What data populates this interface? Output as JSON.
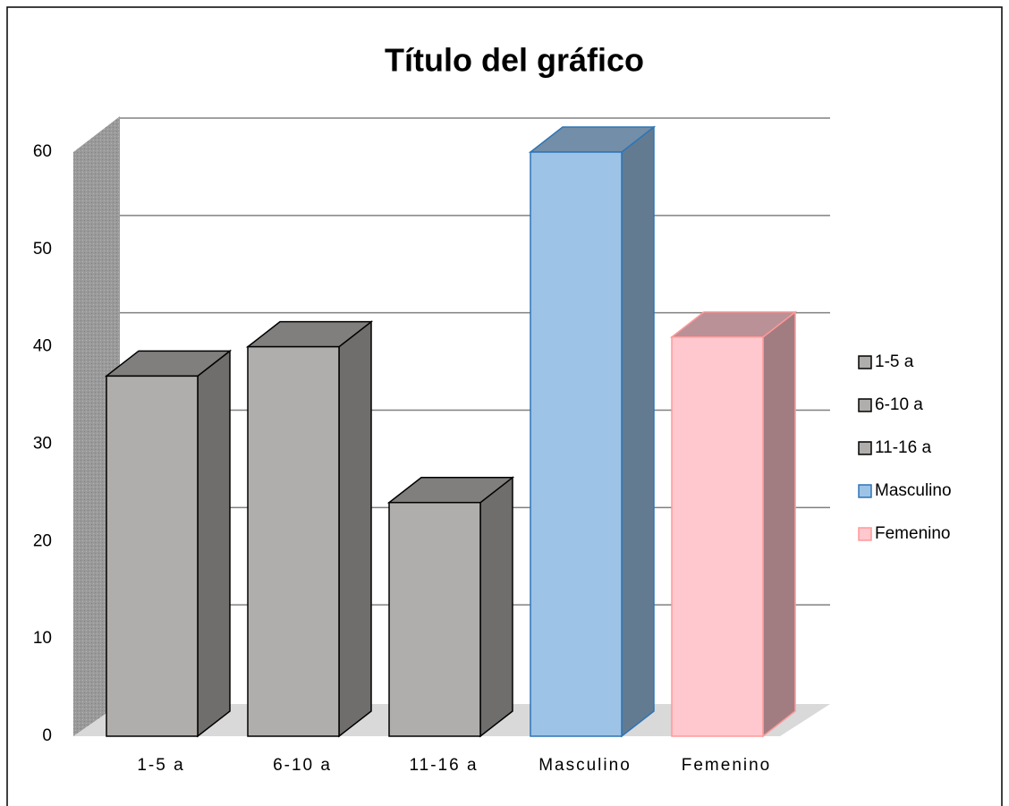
{
  "chart_data": {
    "type": "bar3d",
    "title": "Título del gráfico",
    "categories": [
      "1-5 a",
      "6-10 a",
      "11-16 a",
      "Masculino",
      "Femenino"
    ],
    "values": [
      37,
      40,
      24,
      60,
      41
    ],
    "colors": [
      "#b0aeac",
      "#b0aeac",
      "#b0aeac",
      "#9dc3e6",
      "#ffc7ce"
    ],
    "edge_colors": [
      "#000000",
      "#000000",
      "#000000",
      "#2e75b6",
      "#ff9999"
    ],
    "ylim": [
      0,
      60
    ],
    "yticks": [
      0,
      10,
      20,
      30,
      40,
      50,
      60
    ],
    "grid": true,
    "legend": "right"
  }
}
